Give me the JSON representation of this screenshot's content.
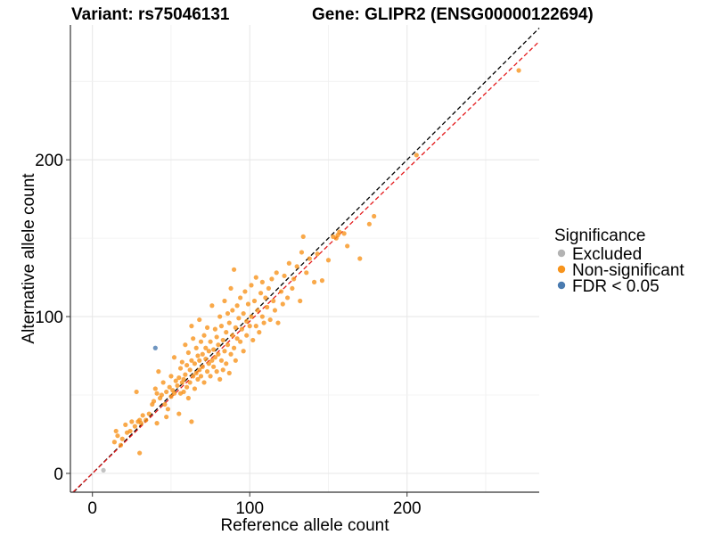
{
  "chart_data": {
    "type": "scatter",
    "title_variant": "Variant: rs75046131",
    "title_gene": "Gene: GLIPR2 (ENSG00000122694)",
    "xlabel": "Reference allele count",
    "ylabel": "Alternative allele count",
    "xlim": [
      -14,
      284
    ],
    "ylim": [
      -12,
      286
    ],
    "xticks": [
      0,
      100,
      200
    ],
    "yticks": [
      0,
      100,
      200
    ],
    "grid": true,
    "legend": {
      "title": "Significance",
      "position": "right",
      "entries": [
        {
          "label": "Excluded",
          "color": "#b3b3b3"
        },
        {
          "label": "Non-significant",
          "color": "#f7941d"
        },
        {
          "label": "FDR < 0.05",
          "color": "#4a7bb0"
        }
      ]
    },
    "reference_lines": [
      {
        "name": "identity",
        "color": "#000000",
        "style": "dashed",
        "slope": 1.0,
        "intercept": 0
      },
      {
        "name": "fit",
        "color": "#e41a1c",
        "style": "dashed",
        "slope": 0.97,
        "intercept": 0
      }
    ],
    "series": [
      {
        "name": "Excluded",
        "color": "#b3b3b3",
        "points": [
          [
            7,
            2
          ]
        ]
      },
      {
        "name": "FDR < 0.05",
        "color": "#4a7bb0",
        "points": [
          [
            40,
            80
          ]
        ]
      },
      {
        "name": "Non-significant",
        "color": "#f7941d",
        "points": [
          [
            14,
            20
          ],
          [
            16,
            24
          ],
          [
            15,
            27
          ],
          [
            18,
            18
          ],
          [
            19,
            22
          ],
          [
            21,
            31
          ],
          [
            22,
            26
          ],
          [
            24,
            27
          ],
          [
            25,
            33
          ],
          [
            27,
            30
          ],
          [
            28,
            52
          ],
          [
            29,
            33
          ],
          [
            30,
            13
          ],
          [
            30,
            34
          ],
          [
            31,
            32
          ],
          [
            32,
            37
          ],
          [
            34,
            34
          ],
          [
            36,
            38
          ],
          [
            38,
            44
          ],
          [
            39,
            46
          ],
          [
            40,
            54
          ],
          [
            41,
            51
          ],
          [
            41,
            32
          ],
          [
            42,
            65
          ],
          [
            43,
            48
          ],
          [
            44,
            50
          ],
          [
            45,
            58
          ],
          [
            46,
            44
          ],
          [
            47,
            36
          ],
          [
            47,
            52
          ],
          [
            48,
            41
          ],
          [
            49,
            55
          ],
          [
            50,
            62
          ],
          [
            50,
            49
          ],
          [
            51,
            53
          ],
          [
            52,
            74
          ],
          [
            52,
            51
          ],
          [
            53,
            59
          ],
          [
            54,
            56
          ],
          [
            55,
            61
          ],
          [
            55,
            38
          ],
          [
            56,
            67
          ],
          [
            56,
            51
          ],
          [
            57,
            71
          ],
          [
            57,
            58
          ],
          [
            58,
            60
          ],
          [
            58,
            52
          ],
          [
            59,
            82
          ],
          [
            59,
            63
          ],
          [
            60,
            55
          ],
          [
            60,
            69
          ],
          [
            61,
            77
          ],
          [
            61,
            48
          ],
          [
            62,
            66
          ],
          [
            62,
            58
          ],
          [
            63,
            94
          ],
          [
            63,
            72
          ],
          [
            63,
            33
          ],
          [
            64,
            62
          ],
          [
            64,
            86
          ],
          [
            65,
            70
          ],
          [
            65,
            54
          ],
          [
            66,
            80
          ],
          [
            66,
            64
          ],
          [
            67,
            75
          ],
          [
            67,
            60
          ],
          [
            68,
            98
          ],
          [
            68,
            72
          ],
          [
            68,
            66
          ],
          [
            69,
            84
          ],
          [
            69,
            62
          ],
          [
            70,
            76
          ],
          [
            70,
            68
          ],
          [
            71,
            88
          ],
          [
            71,
            58
          ],
          [
            72,
            73
          ],
          [
            72,
            80
          ],
          [
            73,
            65
          ],
          [
            73,
            93
          ],
          [
            74,
            70
          ],
          [
            74,
            78
          ],
          [
            75,
            84
          ],
          [
            75,
            62
          ],
          [
            76,
            107
          ],
          [
            76,
            72
          ],
          [
            77,
            79
          ],
          [
            77,
            68
          ],
          [
            78,
            92
          ],
          [
            78,
            74
          ],
          [
            79,
            65
          ],
          [
            79,
            87
          ],
          [
            80,
            82
          ],
          [
            80,
            76
          ],
          [
            81,
            100
          ],
          [
            81,
            60
          ],
          [
            82,
            94
          ],
          [
            82,
            72
          ],
          [
            83,
            85
          ],
          [
            83,
            66
          ],
          [
            84,
            110
          ],
          [
            84,
            78
          ],
          [
            85,
            90
          ],
          [
            85,
            70
          ],
          [
            86,
            102
          ],
          [
            86,
            82
          ],
          [
            87,
            96
          ],
          [
            87,
            64
          ],
          [
            88,
            118
          ],
          [
            88,
            76
          ],
          [
            89,
            88
          ],
          [
            89,
            104
          ],
          [
            90,
            130
          ],
          [
            90,
            80
          ],
          [
            91,
            93
          ],
          [
            91,
            72
          ],
          [
            92,
            107
          ],
          [
            92,
            86
          ],
          [
            93,
            99
          ],
          [
            94,
            84
          ],
          [
            94,
            112
          ],
          [
            95,
            92
          ],
          [
            96,
            102
          ],
          [
            96,
            78
          ],
          [
            97,
            116
          ],
          [
            98,
            88
          ],
          [
            98,
            97
          ],
          [
            99,
            108
          ],
          [
            100,
            94
          ],
          [
            101,
            120
          ],
          [
            101,
            100
          ],
          [
            102,
            85
          ],
          [
            103,
            110
          ],
          [
            104,
            94
          ],
          [
            104,
            125
          ],
          [
            105,
            104
          ],
          [
            106,
            90
          ],
          [
            107,
            115
          ],
          [
            108,
            100
          ],
          [
            108,
            122
          ],
          [
            109,
            96
          ],
          [
            110,
            112
          ],
          [
            111,
            106
          ],
          [
            112,
            118
          ],
          [
            113,
            98
          ],
          [
            114,
            124
          ],
          [
            115,
            110
          ],
          [
            116,
            104
          ],
          [
            117,
            128
          ],
          [
            118,
            96
          ],
          [
            120,
            116
          ],
          [
            121,
            108
          ],
          [
            122,
            126
          ],
          [
            124,
            112
          ],
          [
            125,
            134
          ],
          [
            127,
            118
          ],
          [
            128,
            124
          ],
          [
            130,
            132
          ],
          [
            132,
            110
          ],
          [
            133,
            141
          ],
          [
            134,
            151
          ],
          [
            136,
            128
          ],
          [
            138,
            137
          ],
          [
            141,
            122
          ],
          [
            143,
            140
          ],
          [
            146,
            123
          ],
          [
            150,
            136
          ],
          [
            153,
            151
          ],
          [
            155,
            150
          ],
          [
            156,
            152
          ],
          [
            157,
            154
          ],
          [
            160,
            153
          ],
          [
            162,
            145
          ],
          [
            170,
            137
          ],
          [
            176,
            159
          ],
          [
            179,
            164
          ],
          [
            206,
            203
          ],
          [
            271,
            257
          ]
        ]
      }
    ]
  }
}
